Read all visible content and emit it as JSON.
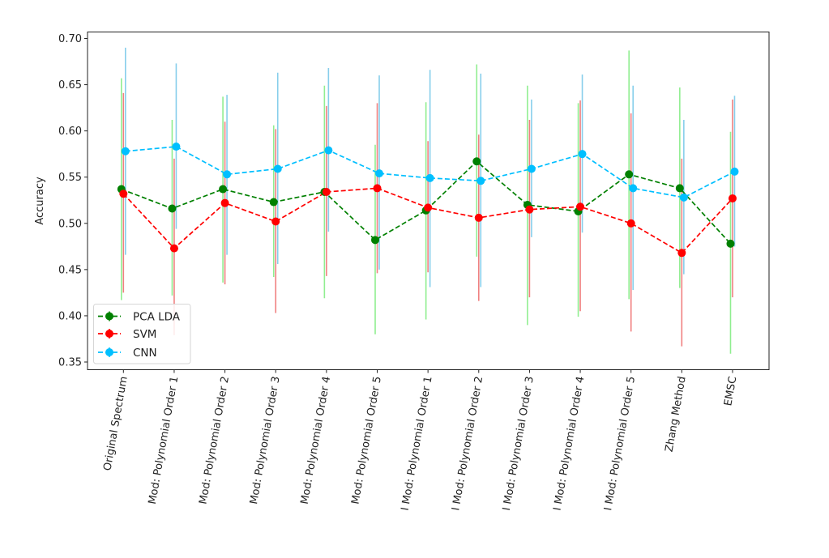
{
  "chart_data": {
    "type": "line",
    "title": "",
    "xlabel": "",
    "ylabel": "Accuracy",
    "ylim": [
      0.342,
      0.707
    ],
    "yticks": [
      "0.35",
      "0.40",
      "0.45",
      "0.50",
      "0.55",
      "0.60",
      "0.65",
      "0.70"
    ],
    "ytick_values": [
      0.35,
      0.4,
      0.45,
      0.5,
      0.55,
      0.6,
      0.65,
      0.7
    ],
    "grid": false,
    "legend_position": "lower-left",
    "categories": [
      "Original Spectrum",
      "Mod: Polynomial Order 1",
      "Mod: Polynomial Order 2",
      "Mod: Polynomial Order 3",
      "Mod: Polynomial Order 4",
      "Mod: Polynomial Order 5",
      "I Mod: Polynomial Order 1",
      "I Mod: Polynomial Order 2",
      "I Mod: Polynomial Order 3",
      "I Mod: Polynomial Order 4",
      "I Mod: Polynomial Order 5",
      "Zhang Method",
      "EMSC"
    ],
    "series": [
      {
        "name": "PCA LDA",
        "color": "#008000",
        "error_color": "#90ee90",
        "values": [
          0.537,
          0.516,
          0.537,
          0.523,
          0.534,
          0.482,
          0.514,
          0.567,
          0.52,
          0.513,
          0.553,
          0.538,
          0.478
        ],
        "error_upper": [
          0.657,
          0.612,
          0.637,
          0.606,
          0.649,
          0.585,
          0.631,
          0.672,
          0.649,
          0.63,
          0.687,
          0.647,
          0.599
        ],
        "error_lower": [
          0.417,
          0.422,
          0.436,
          0.442,
          0.419,
          0.38,
          0.396,
          0.464,
          0.39,
          0.399,
          0.418,
          0.43,
          0.359
        ]
      },
      {
        "name": "SVM",
        "color": "#ff0000",
        "error_color": "#f08080",
        "values": [
          0.532,
          0.473,
          0.522,
          0.502,
          0.534,
          0.538,
          0.517,
          0.506,
          0.515,
          0.518,
          0.5,
          0.468,
          0.527
        ],
        "error_upper": [
          0.641,
          0.57,
          0.61,
          0.602,
          0.627,
          0.63,
          0.589,
          0.596,
          0.612,
          0.633,
          0.619,
          0.57,
          0.634
        ],
        "error_lower": [
          0.425,
          0.379,
          0.434,
          0.403,
          0.443,
          0.446,
          0.447,
          0.416,
          0.42,
          0.405,
          0.383,
          0.367,
          0.42
        ]
      },
      {
        "name": "CNN",
        "color": "#00bfff",
        "error_color": "#87ceeb",
        "values": [
          0.578,
          0.583,
          0.553,
          0.559,
          0.579,
          0.554,
          0.549,
          0.546,
          0.559,
          0.575,
          0.538,
          0.528,
          0.556
        ],
        "error_upper": [
          0.69,
          0.673,
          0.639,
          0.663,
          0.668,
          0.66,
          0.666,
          0.662,
          0.634,
          0.661,
          0.649,
          0.612,
          0.638
        ],
        "error_lower": [
          0.466,
          0.494,
          0.466,
          0.456,
          0.491,
          0.45,
          0.431,
          0.431,
          0.485,
          0.49,
          0.428,
          0.445,
          0.475
        ]
      }
    ]
  }
}
